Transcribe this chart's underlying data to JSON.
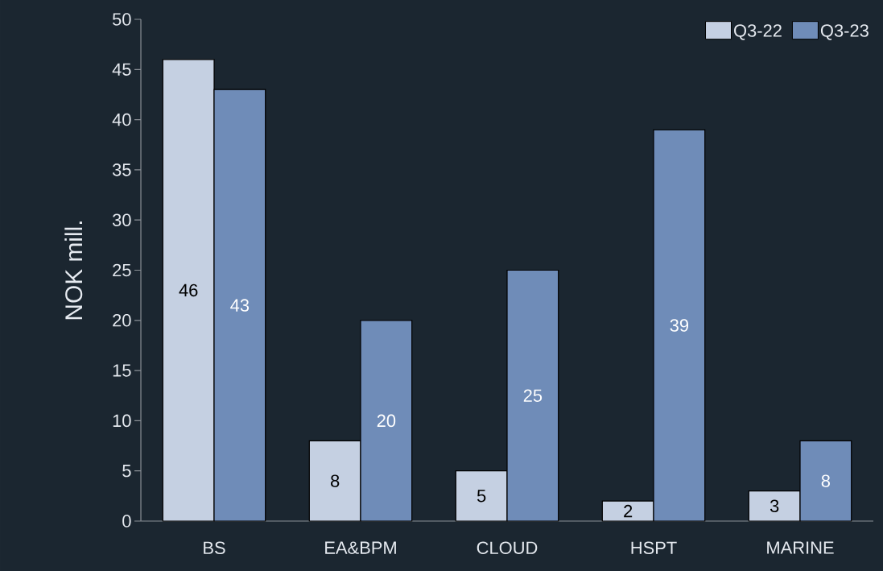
{
  "chart_data": {
    "type": "bar",
    "ylabel": "NOK mill.",
    "categories": [
      "BS",
      "EA&BPM",
      "CLOUD",
      "HSPT",
      "MARINE"
    ],
    "series": [
      {
        "name": "Q3-22",
        "color": "#c5d0e2",
        "values": [
          46,
          8,
          5,
          2,
          3
        ]
      },
      {
        "name": "Q3-23",
        "color": "#6f8cb8",
        "values": [
          43,
          20,
          25,
          39,
          8
        ]
      }
    ],
    "ylim": [
      0,
      50
    ],
    "yticks": [
      0,
      5,
      10,
      15,
      20,
      25,
      30,
      35,
      40,
      45,
      50
    ],
    "data_labels": true,
    "legend": "top right",
    "grid": false
  }
}
